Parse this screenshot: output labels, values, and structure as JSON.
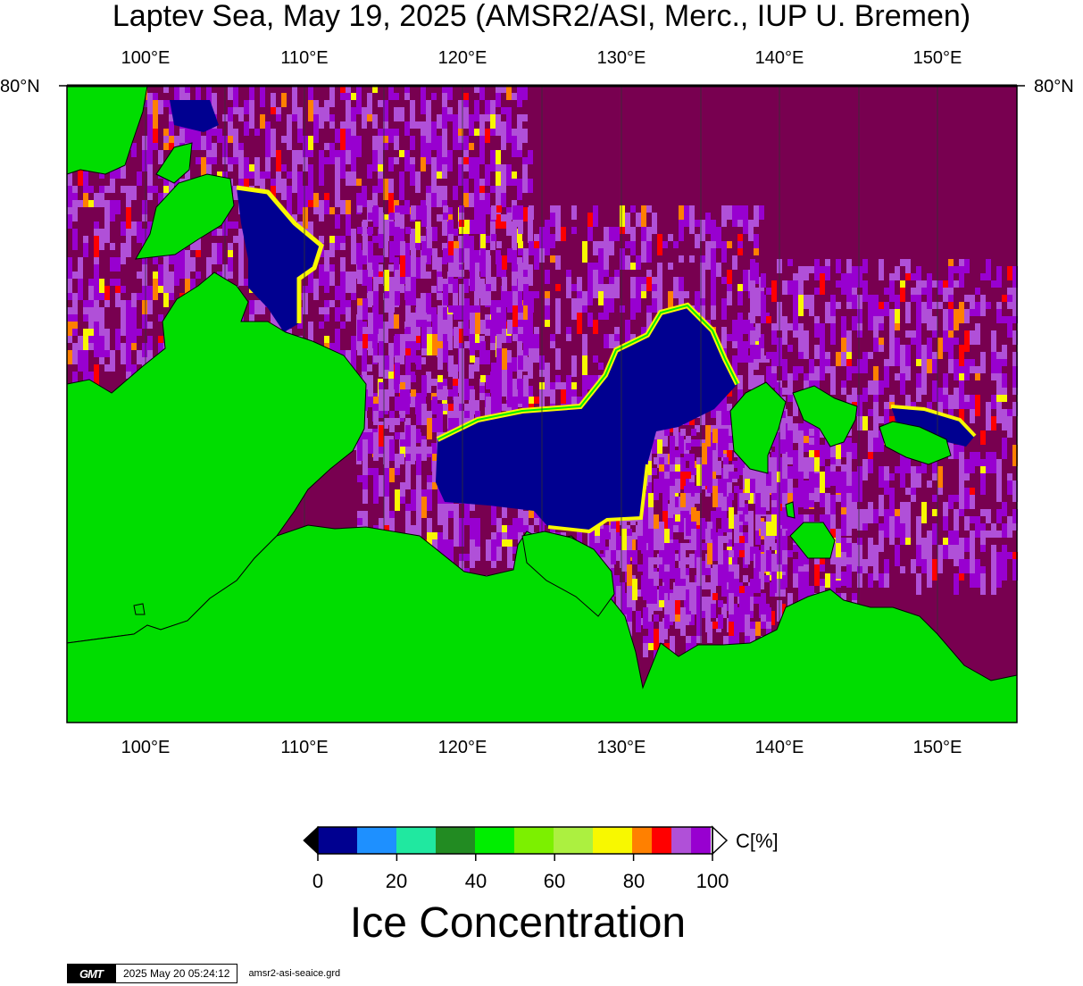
{
  "title": "Laptev Sea, May 19, 2025 (AMSR2/ASI, Merc., IUP U. Bremen)",
  "axes": {
    "lon_labels": [
      "100°E",
      "110°E",
      "120°E",
      "130°E",
      "140°E",
      "150°E"
    ],
    "lat_label": "80°N"
  },
  "colors": {
    "land": "#00dd00",
    "open_water": "#000090",
    "full_ice": "#780050"
  },
  "colorbar": {
    "unit": "C[%]",
    "ticks": [
      "0",
      "20",
      "40",
      "60",
      "80",
      "100"
    ],
    "title": "Ice Concentration",
    "colors": [
      "#000090",
      "#1e90ff",
      "#20e8a0",
      "#228b22",
      "#00ee00",
      "#7cf000",
      "#acf040",
      "#f8f800",
      "#ff8000",
      "#ff0000",
      "#b050d8",
      "#9800d0"
    ]
  },
  "footer": {
    "logo": "GMT",
    "timestamp": "2025 May 20 05:24:12",
    "grid_file": "amsr2-asi-seaice.grd"
  }
}
